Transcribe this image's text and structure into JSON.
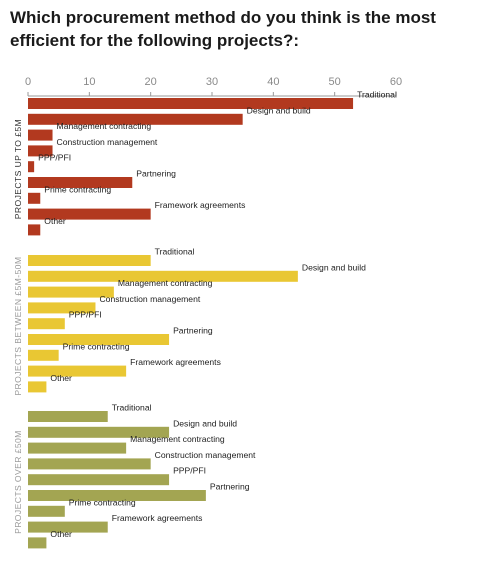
{
  "chart_data": {
    "type": "bar",
    "orientation": "horizontal",
    "title": "Which procurement method do you think is the most efficient for the following projects?:",
    "xlim": [
      0,
      60
    ],
    "x_ticks": [
      0,
      10,
      20,
      30,
      40,
      50,
      60
    ],
    "groups": [
      {
        "name": "PROJECTS UP TO £5M",
        "color": "#b2391f",
        "label_color": "#333333",
        "categories": [
          "Traditional",
          "Design and build",
          "Management contracting",
          "Construction management",
          "PPP/PFI",
          "Partnering",
          "Prime contracting",
          "Framework agreements",
          "Other"
        ],
        "values": [
          53,
          35,
          4,
          4,
          1,
          17,
          2,
          20,
          2
        ]
      },
      {
        "name": "PROJECTS BETWEEN £5M-50M",
        "color": "#e9c733",
        "label_color": "#9a9a9a",
        "categories": [
          "Traditional",
          "Design and build",
          "Management contracting",
          "Construction management",
          "PPP/PFI",
          "Partnering",
          "Prime contracting",
          "Framework agreements",
          "Other"
        ],
        "values": [
          20,
          44,
          14,
          11,
          6,
          23,
          5,
          16,
          3
        ]
      },
      {
        "name": "PROJECTS OVER £50M",
        "color": "#a3a552",
        "label_color": "#9a9a9a",
        "categories": [
          "Traditional",
          "Design and build",
          "Management contracting",
          "Construction management",
          "PPP/PFI",
          "Partnering",
          "Prime contracting",
          "Framework agreements",
          "Other"
        ],
        "values": [
          13,
          23,
          16,
          20,
          23,
          29,
          6,
          13,
          3
        ]
      }
    ]
  }
}
